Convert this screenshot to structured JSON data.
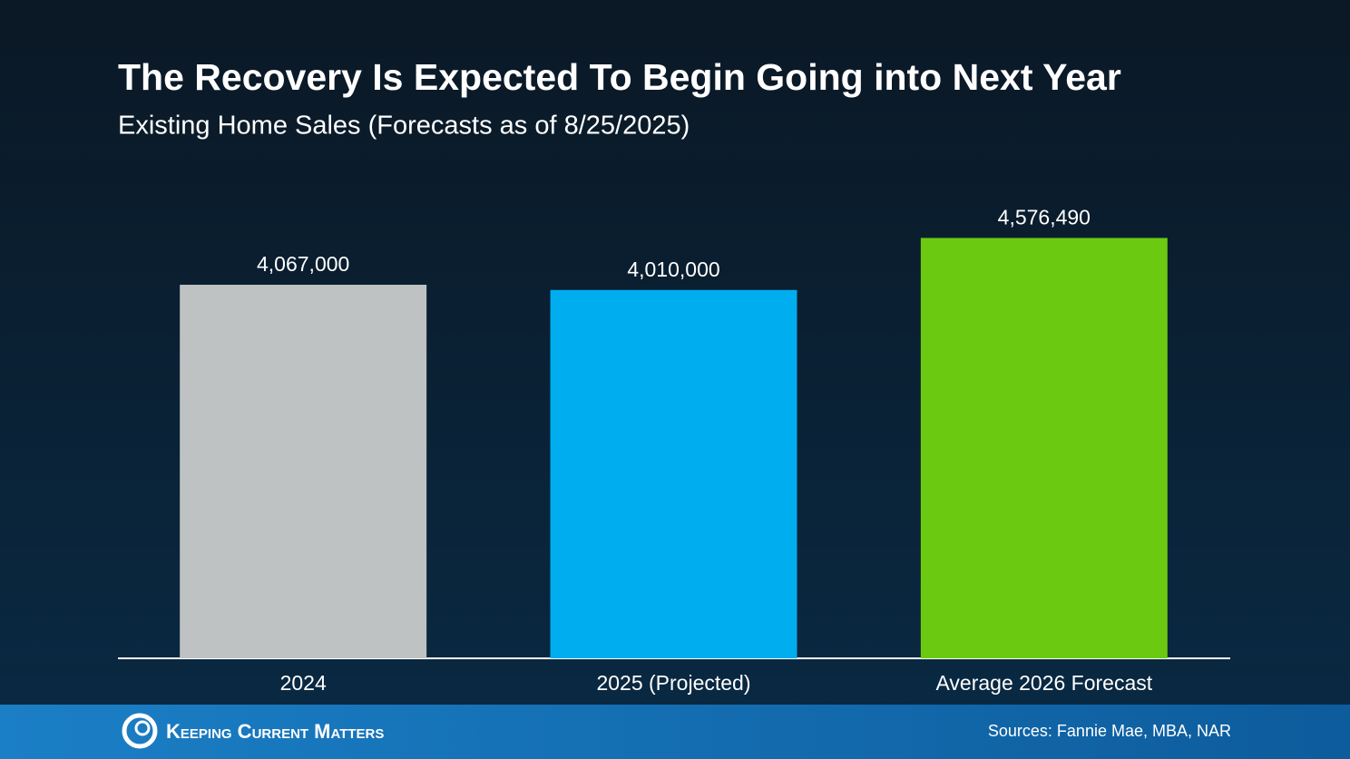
{
  "chart_data": {
    "type": "bar",
    "title": "The Recovery Is Expected To Begin Going into Next Year",
    "subtitle": "Existing Home Sales (Forecasts as of 8/25/2025)",
    "categories": [
      "2024",
      "2025 (Projected)",
      "Average 2026 Forecast"
    ],
    "values": [
      4067000,
      4010000,
      4576490
    ],
    "value_labels": [
      "4,067,000",
      "4,010,000",
      "4,576,490"
    ],
    "colors": [
      "#bec2c2",
      "#00aeef",
      "#6cc911"
    ],
    "ylim": [
      0,
      5000000
    ]
  },
  "footer": {
    "brand": "Keeping Current Matters",
    "sources": "Sources: Fannie Mae, MBA, NAR"
  }
}
